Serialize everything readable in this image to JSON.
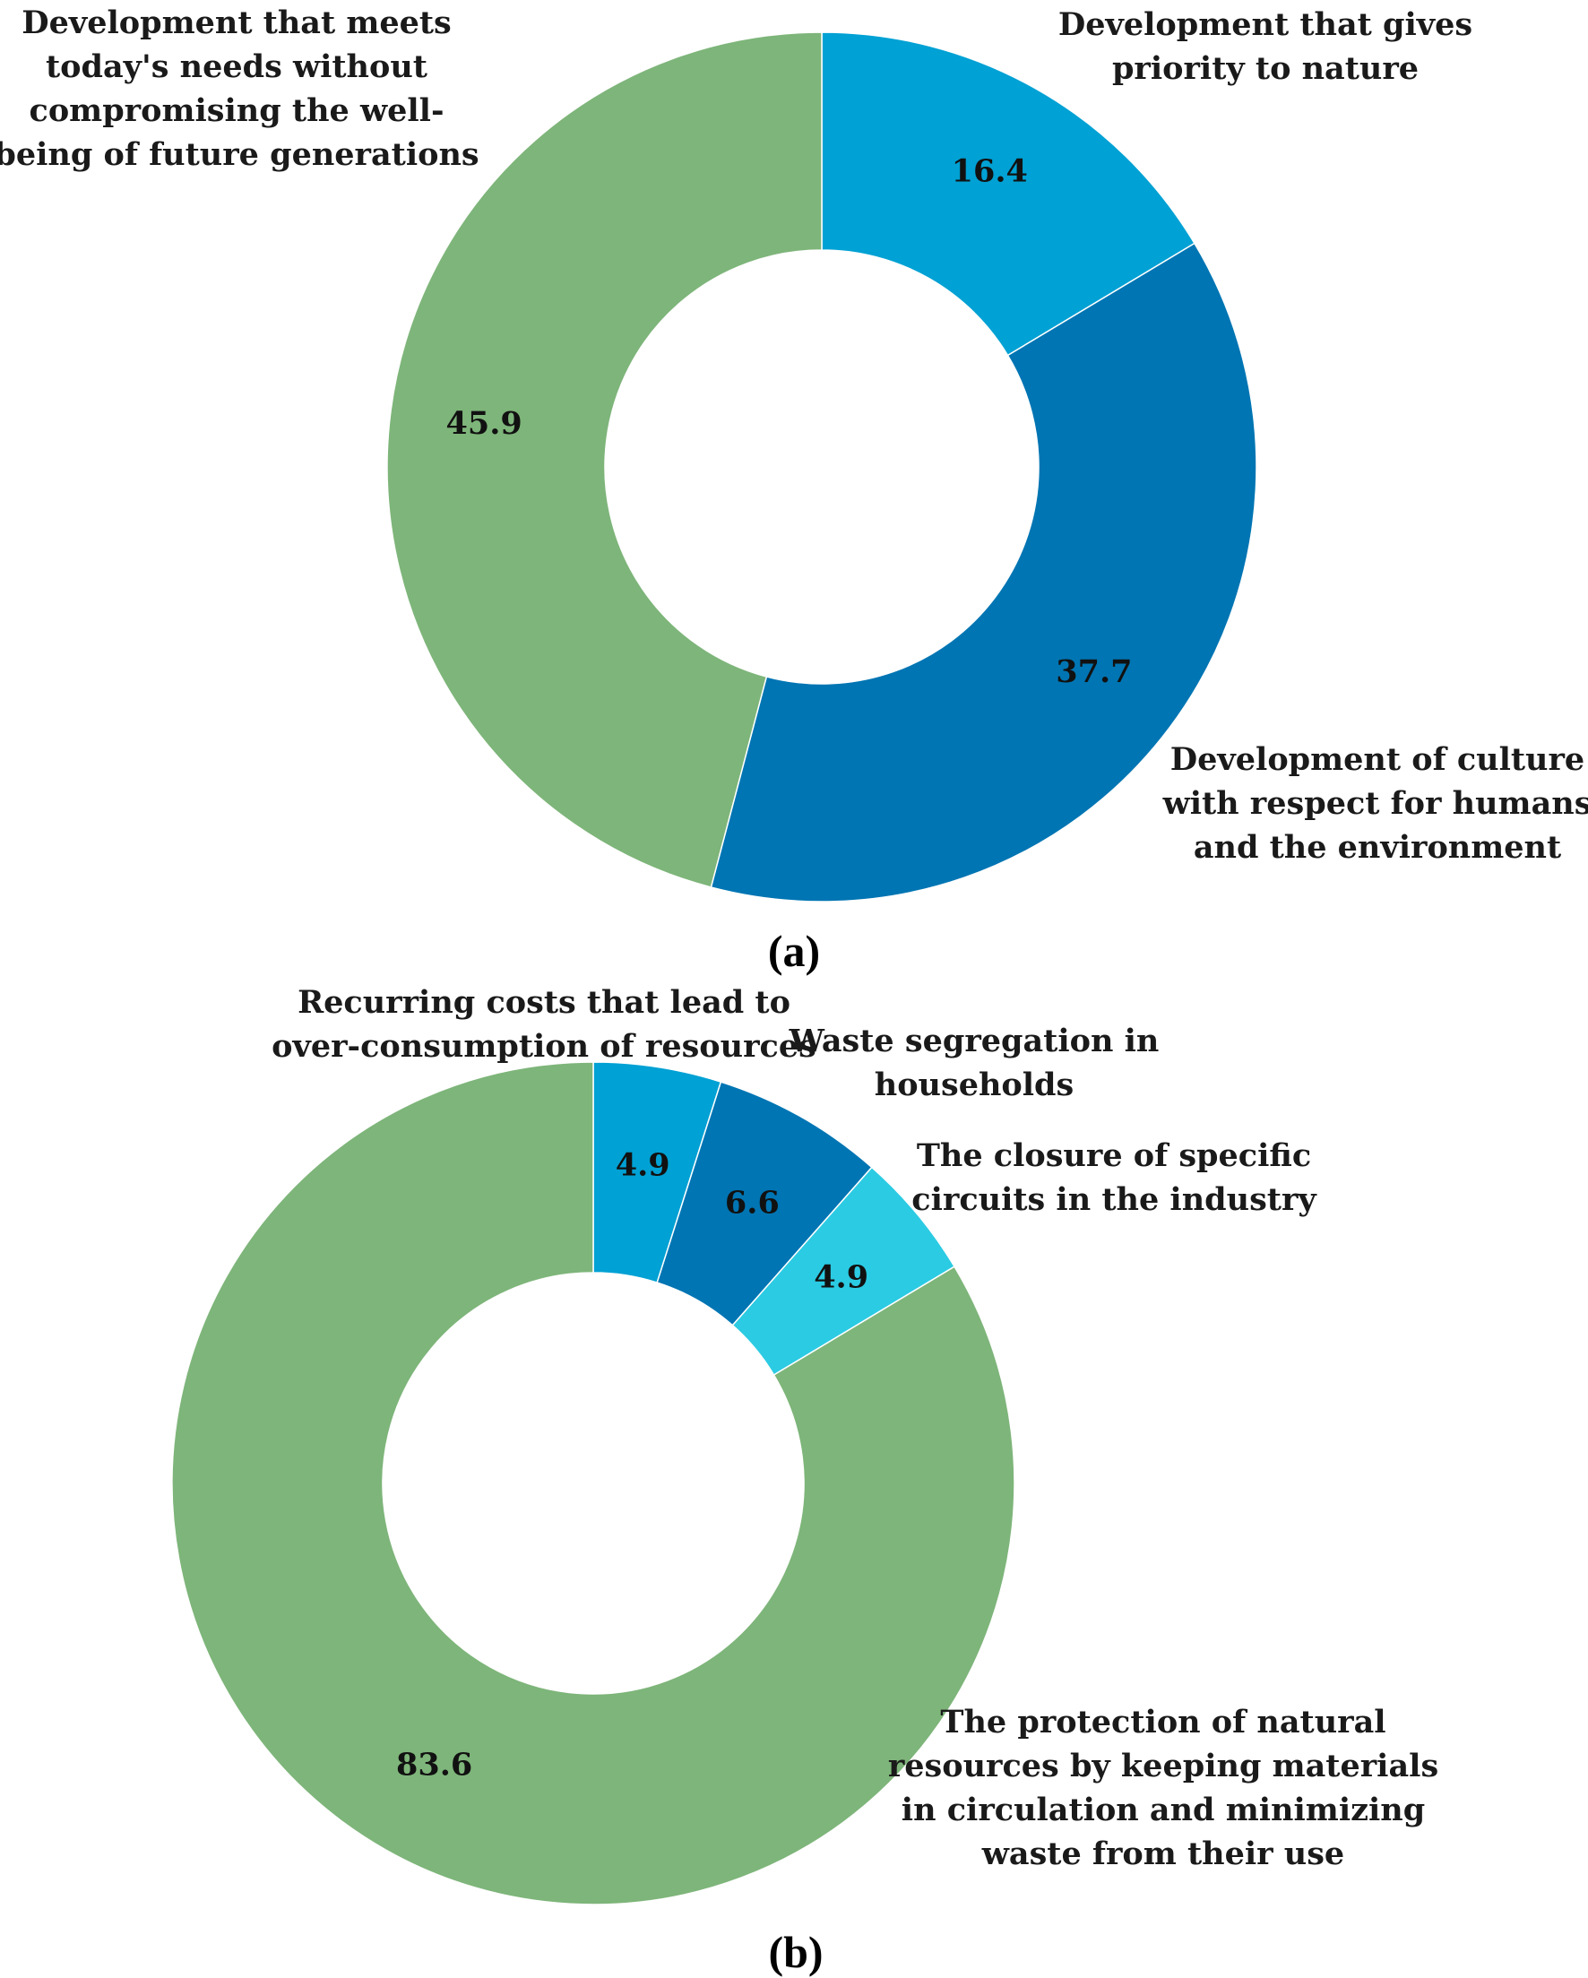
{
  "chart_data": [
    {
      "type": "pie",
      "donut": true,
      "panel_label": "(a)",
      "categories": [
        "Development that gives priority to nature",
        "Development of culture with respect for humans and the environment",
        "Development that meets today's needs without compromising the well-being of future generations"
      ],
      "values": [
        16.4,
        37.7,
        45.9
      ],
      "category_lines": [
        [
          "Development that gives",
          "priority to nature"
        ],
        [
          "Development of  culture",
          "with respect for humans",
          "and the environment"
        ],
        [
          "Development that meets",
          "today's needs without",
          "compromising the well-",
          "being of future generations"
        ]
      ],
      "value_labels": [
        "16.4",
        "37.7",
        "45.9"
      ],
      "colors": [
        "#00a1d4",
        "#0075b3",
        "#7eb57a"
      ]
    },
    {
      "type": "pie",
      "donut": true,
      "panel_label": "(b)",
      "categories": [
        "Recurring costs that lead to over-consumption of resources",
        "Waste segregation in households",
        "The closure of specific circuits in the industry",
        "The protection of natural resources by keeping materials in circulation and minimizing waste from their use"
      ],
      "values": [
        4.9,
        6.6,
        4.9,
        83.6
      ],
      "category_lines": [
        [
          "Recurring costs that lead to",
          "over-consumption of resources"
        ],
        [
          "Waste segregation in",
          "households"
        ],
        [
          "The closure of specific",
          "circuits in the industry"
        ],
        [
          "The protection of natural",
          "resources by keeping materials",
          "in circulation and minimizing",
          "waste from their use"
        ]
      ],
      "value_labels": [
        "4.9",
        "6.6",
        "4.9",
        "83.6"
      ],
      "colors": [
        "#00a1d4",
        "#0075b3",
        "#2bcbe3",
        "#7eb57a"
      ]
    }
  ]
}
